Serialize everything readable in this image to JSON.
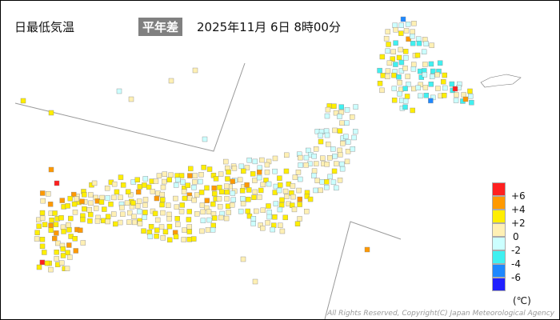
{
  "header": {
    "title": "日最低気温",
    "mode_badge": "平年差",
    "datetime": "2025年11月 6日 8時00分"
  },
  "legend": {
    "unit": "(℃)",
    "labels": [
      "+6",
      "+4",
      "+2",
      "0",
      "-2",
      "-4",
      "-6"
    ],
    "colors": [
      "#ff2020",
      "#ff9900",
      "#ffee00",
      "#fff0b4",
      "#ccffff",
      "#40f0f0",
      "#1e88ff",
      "#2020ff"
    ]
  },
  "footer": {
    "copyright": "All Rights Reserved, Copyright(C) Japan Meteorological Agency"
  }
}
